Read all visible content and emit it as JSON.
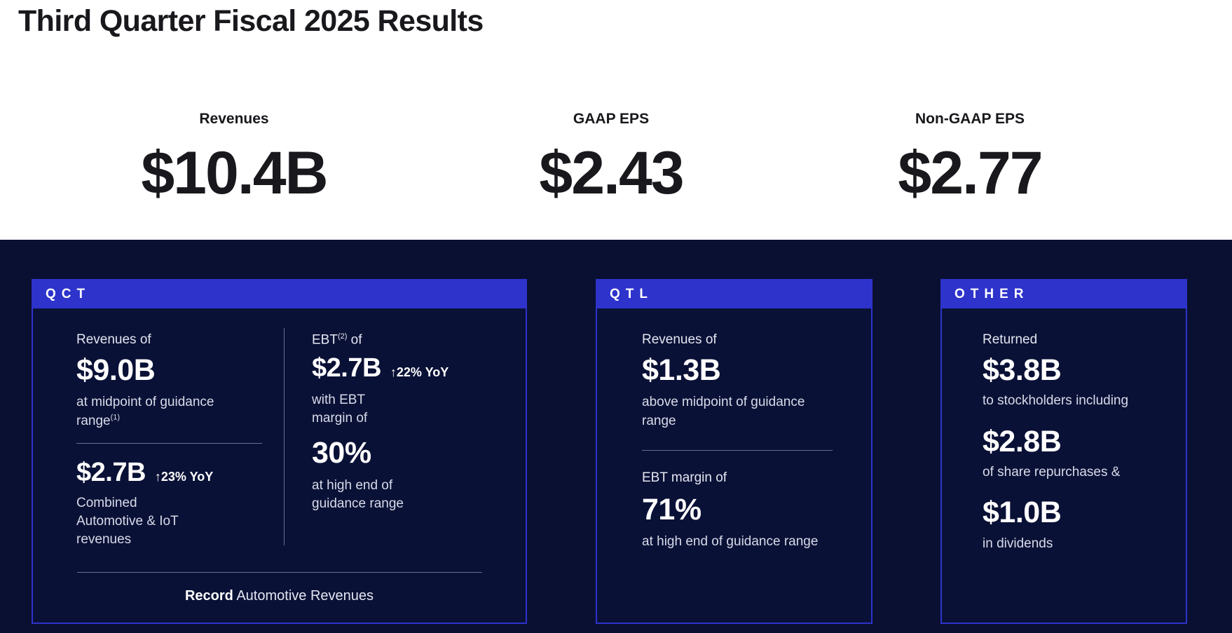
{
  "title": "Third Quarter Fiscal 2025 Results",
  "headline_metrics": [
    {
      "label": "Revenues",
      "value": "$10.4B"
    },
    {
      "label": "GAAP EPS",
      "value": "$2.43"
    },
    {
      "label": "Non-GAAP EPS",
      "value": "$2.77"
    }
  ],
  "cards": {
    "qct": {
      "header": "QCT",
      "left": {
        "intro": "Revenues of",
        "value1": "$9.0B",
        "caption1": "at midpoint of guidance range",
        "caption1_sup": "(1)",
        "value2": "$2.7B",
        "value2_badge": "↑23% YoY",
        "caption2": "Combined Automotive & IoT revenues"
      },
      "right": {
        "intro_prefix": "EBT",
        "intro_sup": "(2)",
        "intro_suffix": " of",
        "value1": "$2.7B",
        "value1_badge": "↑22% YoY",
        "caption1": "with EBT margin of",
        "value2": "30%",
        "caption2": "at high end of guidance range"
      },
      "footer_bold": "Record",
      "footer_text": " Automotive Revenues"
    },
    "qtl": {
      "header": "QTL",
      "intro1": "Revenues of",
      "value1": "$1.3B",
      "caption1": "above midpoint of guidance range",
      "intro2": "EBT margin of",
      "value2": "71%",
      "caption2": "at high end of guidance range"
    },
    "other": {
      "header": "OTHER",
      "intro": "Returned",
      "value1": "$3.8B",
      "caption1": "to stockholders including",
      "value2": "$2.8B",
      "caption2": "of share repurchases &",
      "value3": "$1.0B",
      "caption3": "in dividends"
    }
  },
  "colors": {
    "accent_blue": "#2d33cb",
    "background_navy": "#0a1032",
    "headline_text": "#18181d"
  }
}
